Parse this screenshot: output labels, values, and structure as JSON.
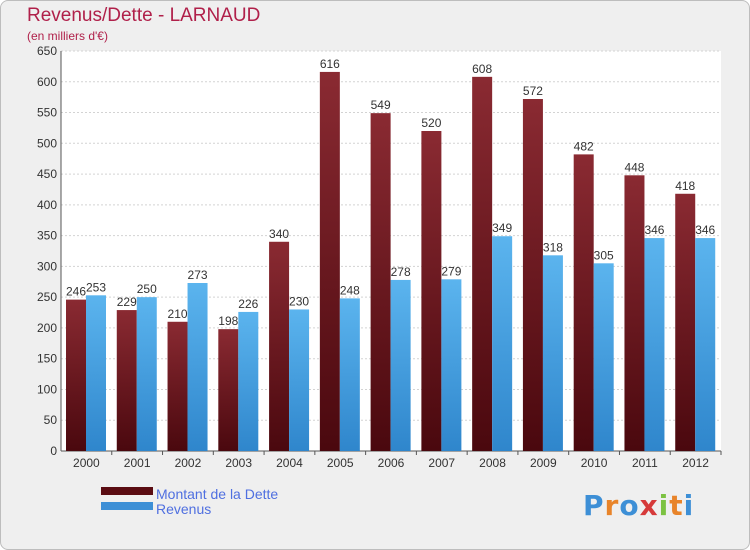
{
  "header": {
    "title": "Revenus/Dette - LARNAUD",
    "subtitle": "(en milliers d'€)"
  },
  "chart_data": {
    "type": "bar",
    "categories": [
      "2000",
      "2001",
      "2002",
      "2003",
      "2004",
      "2005",
      "2006",
      "2007",
      "2008",
      "2009",
      "2010",
      "2011",
      "2012"
    ],
    "series": [
      {
        "name": "Montant de la Dette",
        "color": "#7a1a22",
        "values": [
          246,
          229,
          210,
          198,
          340,
          616,
          549,
          520,
          608,
          572,
          482,
          448,
          418
        ]
      },
      {
        "name": "Revenus",
        "color": "#4aa6e6",
        "values": [
          253,
          250,
          273,
          226,
          230,
          248,
          278,
          279,
          349,
          318,
          305,
          346,
          346
        ]
      }
    ],
    "y_ticks": [
      0,
      50,
      100,
      150,
      200,
      250,
      300,
      350,
      400,
      450,
      500,
      550,
      600,
      650
    ],
    "ylim": [
      0,
      650
    ],
    "grid": true,
    "legend": "bottom-left"
  },
  "legend": {
    "items": [
      {
        "label": "Montant de la Dette",
        "color": "#5a0c12"
      },
      {
        "label": "Revenus",
        "color": "#3d8fd6"
      }
    ]
  },
  "logo": {
    "letters": [
      {
        "char": "P",
        "color": "#3d8fd6"
      },
      {
        "char": "r",
        "color": "#e8842a"
      },
      {
        "char": "o",
        "color": "#3d8fd6"
      },
      {
        "char": "x",
        "color": "#d63a3a"
      },
      {
        "char": "i",
        "color": "#7cc242"
      },
      {
        "char": "t",
        "color": "#e8842a"
      },
      {
        "char": "i",
        "color": "#3d8fd6"
      }
    ]
  }
}
